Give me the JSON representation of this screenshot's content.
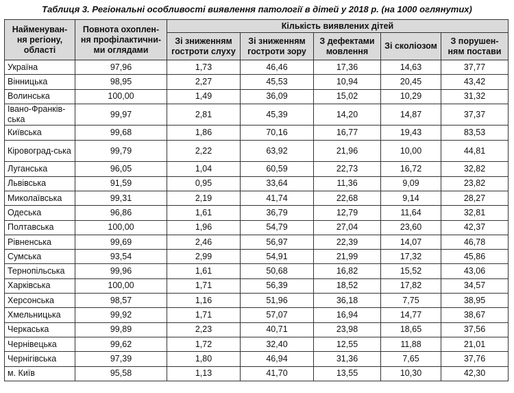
{
  "caption": "Таблиця 3. Регіональні особливості виявлення патології в дітей у 2018 р. (на 1000 оглянутих)",
  "headers": {
    "region": "Найменуван-ня регіону, області",
    "coverage": "Повнота охоплен-ня профілактични-ми оглядами",
    "group": "Кількість виявлених дітей",
    "hearing": "Зі зниженням гостроти слуху",
    "vision": "Зі зниженням гостроти зору",
    "speech": "З дефектами мовлення",
    "scoliosis": "Зі сколіозом",
    "posture": "З порушен-ням постави"
  },
  "rows": [
    {
      "region": "Україна",
      "coverage": "97,96",
      "hearing": "1,73",
      "vision": "46,46",
      "speech": "17,36",
      "scoliosis": "14,63",
      "posture": "37,77"
    },
    {
      "region": "Вінницька",
      "coverage": "98,95",
      "hearing": "2,27",
      "vision": "45,53",
      "speech": "10,94",
      "scoliosis": "20,45",
      "posture": "43,42"
    },
    {
      "region": "Волинська",
      "coverage": "100,00",
      "hearing": "1,49",
      "vision": "36,09",
      "speech": "15,02",
      "scoliosis": "10,29",
      "posture": "31,32"
    },
    {
      "region": "Івано-Франків-ська",
      "coverage": "99,97",
      "hearing": "2,81",
      "vision": "45,39",
      "speech": "14,20",
      "scoliosis": "14,87",
      "posture": "37,37"
    },
    {
      "region": "Київська",
      "coverage": "99,68",
      "hearing": "1,86",
      "vision": "70,16",
      "speech": "16,77",
      "scoliosis": "19,43",
      "posture": "83,53"
    },
    {
      "region": "Кіровоград-ська",
      "coverage": "99,79",
      "hearing": "2,22",
      "vision": "63,92",
      "speech": "21,96",
      "scoliosis": "10,00",
      "posture": "44,81"
    },
    {
      "region": "Луганська",
      "coverage": "96,05",
      "hearing": "1,04",
      "vision": "60,59",
      "speech": "22,73",
      "scoliosis": "16,72",
      "posture": "32,82"
    },
    {
      "region": "Львівська",
      "coverage": "91,59",
      "hearing": "0,95",
      "vision": "33,64",
      "speech": "11,36",
      "scoliosis": "9,09",
      "posture": "23,82"
    },
    {
      "region": "Миколаївська",
      "coverage": "99,31",
      "hearing": "2,19",
      "vision": "41,74",
      "speech": "22,68",
      "scoliosis": "9,14",
      "posture": "28,27"
    },
    {
      "region": "Одеська",
      "coverage": "96,86",
      "hearing": "1,61",
      "vision": "36,79",
      "speech": "12,79",
      "scoliosis": "11,64",
      "posture": "32,81"
    },
    {
      "region": "Полтавська",
      "coverage": "100,00",
      "hearing": "1,96",
      "vision": "54,79",
      "speech": "27,04",
      "scoliosis": "23,60",
      "posture": "42,37"
    },
    {
      "region": "Рівненська",
      "coverage": "99,69",
      "hearing": "2,46",
      "vision": "56,97",
      "speech": "22,39",
      "scoliosis": "14,07",
      "posture": "46,78"
    },
    {
      "region": "Сумська",
      "coverage": "93,54",
      "hearing": "2,99",
      "vision": "54,91",
      "speech": "21,99",
      "scoliosis": "17,32",
      "posture": "45,86"
    },
    {
      "region": "Тернопільська",
      "coverage": "99,96",
      "hearing": "1,61",
      "vision": "50,68",
      "speech": "16,82",
      "scoliosis": "15,52",
      "posture": "43,06"
    },
    {
      "region": "Харківська",
      "coverage": "100,00",
      "hearing": "1,71",
      "vision": "56,39",
      "speech": "18,52",
      "scoliosis": "17,82",
      "posture": "34,57"
    },
    {
      "region": "Херсонська",
      "coverage": "98,57",
      "hearing": "1,16",
      "vision": "51,96",
      "speech": "36,18",
      "scoliosis": "7,75",
      "posture": "38,95"
    },
    {
      "region": "Хмельницька",
      "coverage": "99,92",
      "hearing": "1,71",
      "vision": "57,07",
      "speech": "16,94",
      "scoliosis": "14,77",
      "posture": "38,67"
    },
    {
      "region": "Черкаська",
      "coverage": "99,89",
      "hearing": "2,23",
      "vision": "40,71",
      "speech": "23,98",
      "scoliosis": "18,65",
      "posture": "37,56"
    },
    {
      "region": "Чернівецька",
      "coverage": "99,62",
      "hearing": "1,72",
      "vision": "32,40",
      "speech": "12,55",
      "scoliosis": "11,88",
      "posture": "21,01"
    },
    {
      "region": "Чернігівська",
      "coverage": "97,39",
      "hearing": "1,80",
      "vision": "46,94",
      "speech": "31,36",
      "scoliosis": "7,65",
      "posture": "37,76"
    },
    {
      "region": "м. Київ",
      "coverage": "95,58",
      "hearing": "1,13",
      "vision": "41,70",
      "speech": "13,55",
      "scoliosis": "10,30",
      "posture": "42,30"
    }
  ]
}
